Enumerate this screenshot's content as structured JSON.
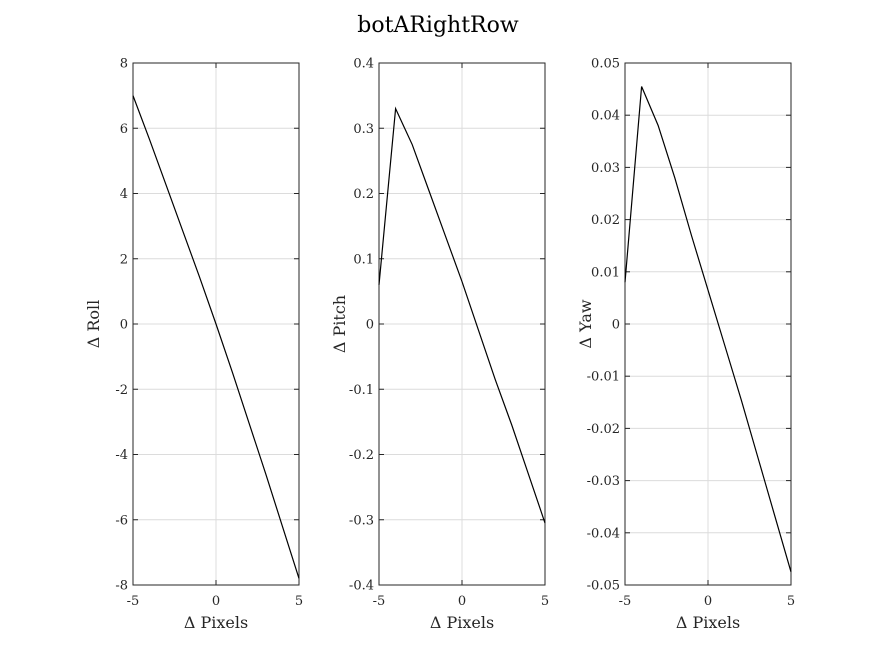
{
  "figure": {
    "title": "botARightRow"
  },
  "chart_data": [
    {
      "type": "line",
      "xlabel": "Δ Pixels",
      "ylabel": "Δ Roll",
      "xlim": [
        -5,
        5
      ],
      "ylim": [
        -8,
        8
      ],
      "xticks": [
        -5,
        0,
        5
      ],
      "xtick_labels": [
        "-5",
        "0",
        "5"
      ],
      "yticks": [
        -8,
        -6,
        -4,
        -2,
        0,
        2,
        4,
        6,
        8
      ],
      "ytick_labels": [
        "-8",
        "-6",
        "-4",
        "-2",
        "0",
        "2",
        "4",
        "6",
        "8"
      ],
      "grid": true,
      "x": [
        -5,
        -4,
        -3,
        -2,
        -1,
        0,
        1,
        2,
        3,
        4,
        5
      ],
      "y": [
        7.0,
        5.65,
        4.25,
        2.85,
        1.45,
        0.0,
        -1.5,
        -3.05,
        -4.6,
        -6.2,
        -7.8
      ]
    },
    {
      "type": "line",
      "xlabel": "Δ Pixels",
      "ylabel": "Δ Pitch",
      "xlim": [
        -5,
        5
      ],
      "ylim": [
        -0.4,
        0.4
      ],
      "xticks": [
        -5,
        0,
        5
      ],
      "xtick_labels": [
        "-5",
        "0",
        "5"
      ],
      "yticks": [
        -0.4,
        -0.3,
        -0.2,
        -0.1,
        0,
        0.1,
        0.2,
        0.3,
        0.4
      ],
      "ytick_labels": [
        "-0.4",
        "-0.3",
        "-0.2",
        "-0.1",
        "0",
        "0.1",
        "0.2",
        "0.3",
        "0.4"
      ],
      "grid": true,
      "x": [
        -5,
        -4,
        -3,
        -2,
        -1,
        0,
        1,
        2,
        3,
        4,
        5
      ],
      "y": [
        0.06,
        0.33,
        0.275,
        0.205,
        0.135,
        0.065,
        -0.01,
        -0.085,
        -0.155,
        -0.23,
        -0.305
      ]
    },
    {
      "type": "line",
      "xlabel": "Δ Pixels",
      "ylabel": "Δ Yaw",
      "xlim": [
        -5,
        5
      ],
      "ylim": [
        -0.05,
        0.05
      ],
      "xticks": [
        -5,
        0,
        5
      ],
      "xtick_labels": [
        "-5",
        "0",
        "5"
      ],
      "yticks": [
        -0.05,
        -0.04,
        -0.03,
        -0.02,
        -0.01,
        0,
        0.01,
        0.02,
        0.03,
        0.04,
        0.05
      ],
      "ytick_labels": [
        "-0.05",
        "-0.04",
        "-0.03",
        "-0.02",
        "-0.01",
        "0",
        "0.01",
        "0.02",
        "0.03",
        "0.04",
        "0.05"
      ],
      "grid": true,
      "x": [
        -5,
        -4,
        -3,
        -2,
        -1,
        0,
        1,
        2,
        3,
        4,
        5
      ],
      "y": [
        0.008,
        0.0455,
        0.038,
        0.028,
        0.017,
        0.0065,
        -0.004,
        -0.0145,
        -0.0255,
        -0.0365,
        -0.0475
      ]
    }
  ]
}
